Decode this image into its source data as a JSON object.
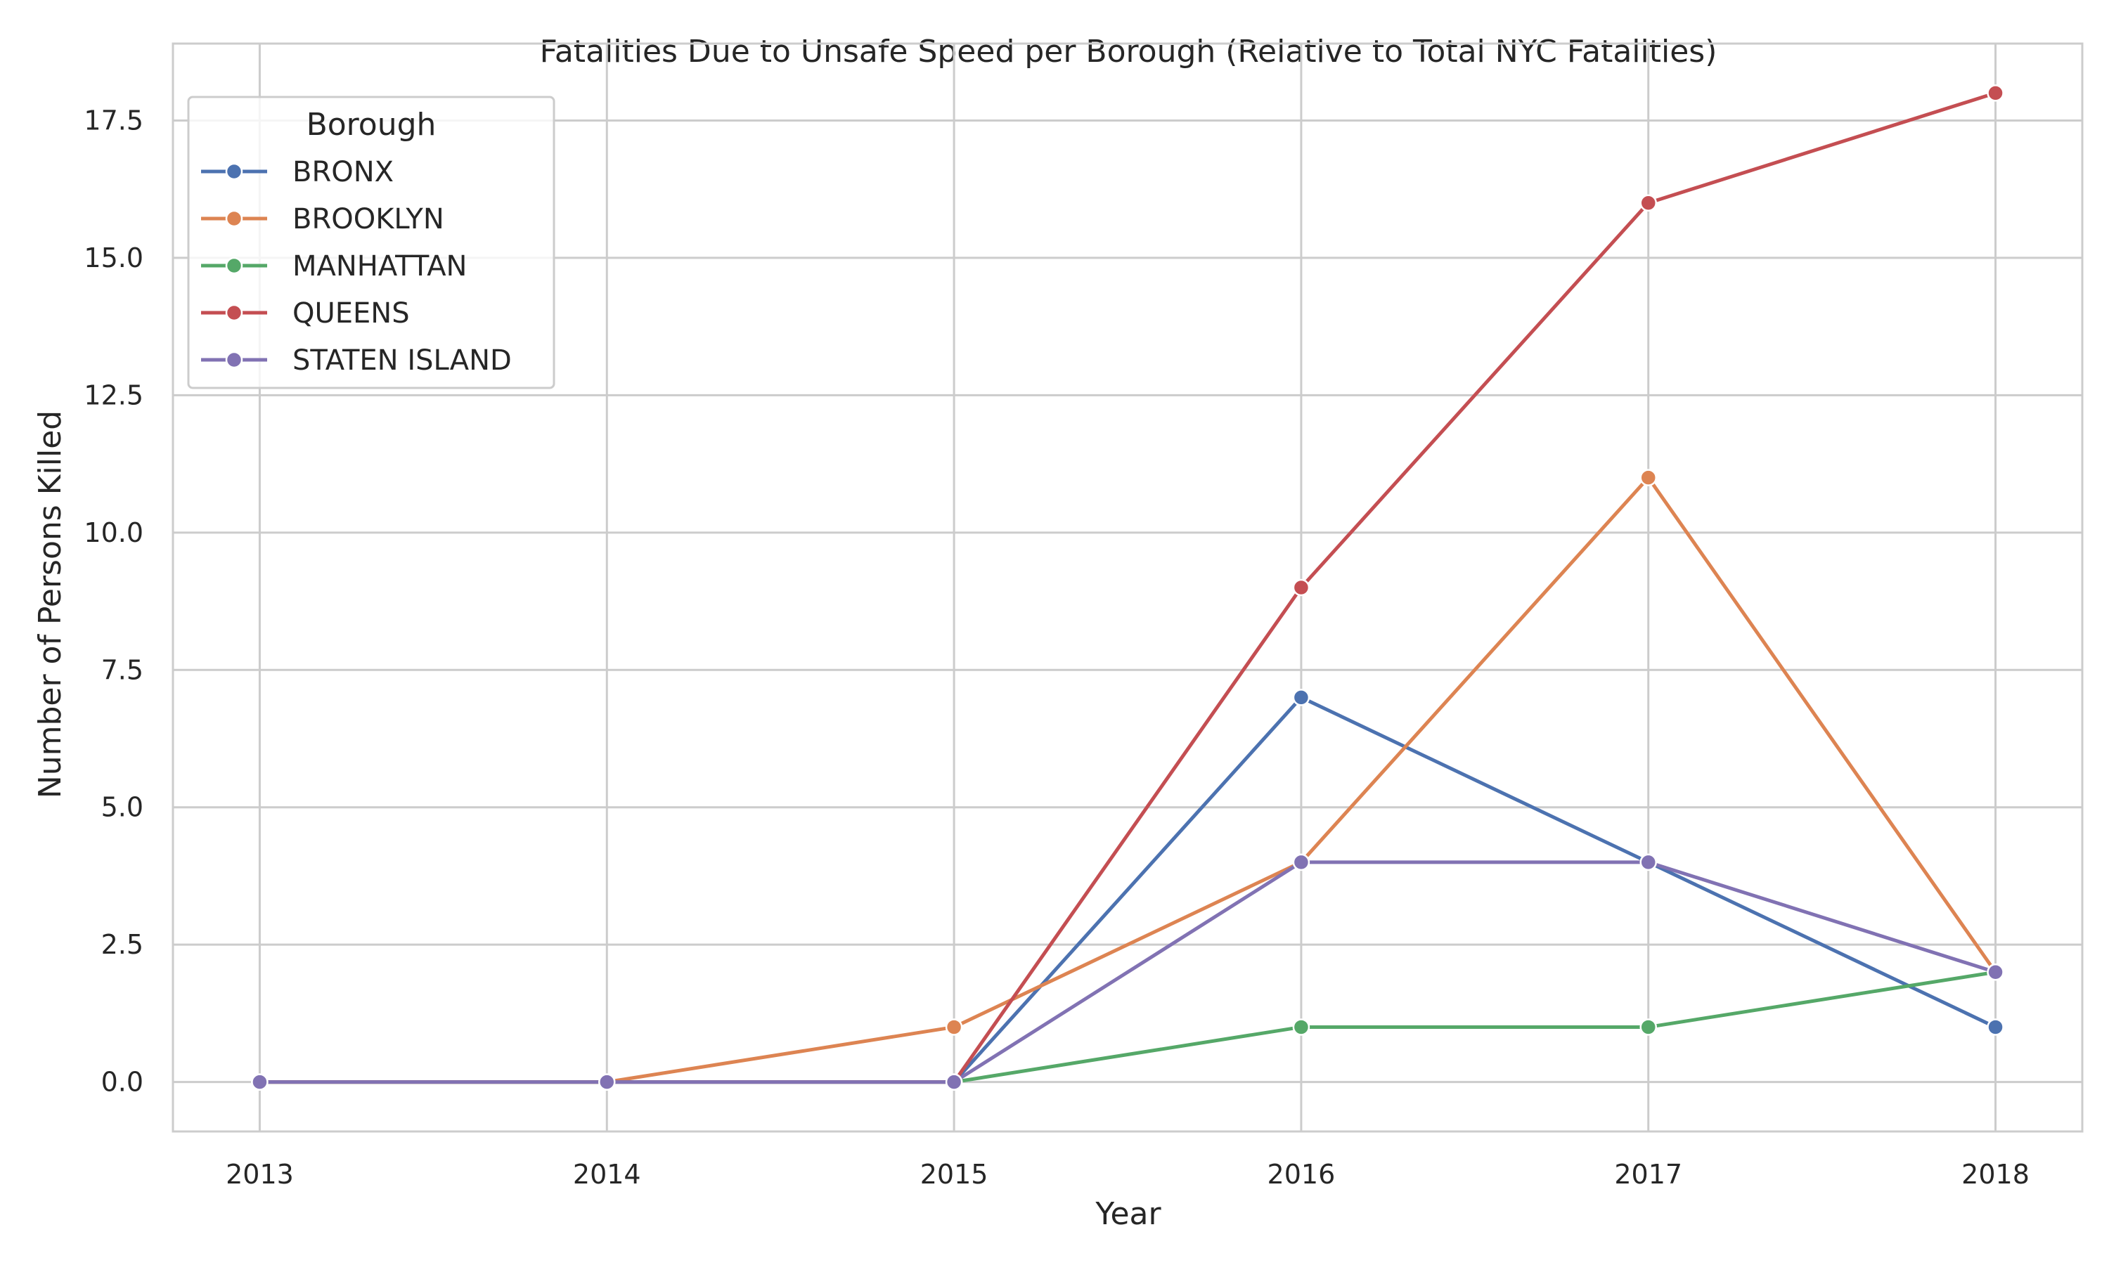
{
  "chart_data": {
    "type": "line",
    "title": "Fatalities Due to Unsafe Speed per Borough (Relative to Total NYC Fatalities)",
    "xlabel": "Year",
    "ylabel": "Number of Persons Killed",
    "x": [
      2013,
      2014,
      2015,
      2016,
      2017,
      2018
    ],
    "x_tick_labels": [
      "2013",
      "2014",
      "2015",
      "2016",
      "2017",
      "2018"
    ],
    "y_ticks": [
      0.0,
      2.5,
      5.0,
      7.5,
      10.0,
      12.5,
      15.0,
      17.5
    ],
    "y_tick_labels": [
      "0.0",
      "2.5",
      "5.0",
      "7.5",
      "10.0",
      "12.5",
      "15.0",
      "17.5"
    ],
    "xlim": [
      2012.75,
      2018.25
    ],
    "ylim": [
      -0.9,
      18.9
    ],
    "grid": true,
    "legend": {
      "title": "Borough",
      "placement": "top-left"
    },
    "series": [
      {
        "name": "BRONX",
        "color": "#4c72b0",
        "values": [
          0,
          0,
          0,
          7,
          4,
          1
        ]
      },
      {
        "name": "BROOKLYN",
        "color": "#dd8452",
        "values": [
          0,
          0,
          1,
          4,
          11,
          2
        ]
      },
      {
        "name": "MANHATTAN",
        "color": "#55a868",
        "values": [
          0,
          0,
          0,
          1,
          1,
          2
        ]
      },
      {
        "name": "QUEENS",
        "color": "#c44e52",
        "values": [
          0,
          0,
          0,
          9,
          16,
          18
        ]
      },
      {
        "name": "STATEN ISLAND",
        "color": "#8172b3",
        "values": [
          0,
          0,
          0,
          4,
          4,
          2
        ]
      }
    ],
    "colors": {
      "grid": "#cccccc",
      "frame": "#cccccc",
      "text": "#262626",
      "background": "#ffffff"
    }
  }
}
